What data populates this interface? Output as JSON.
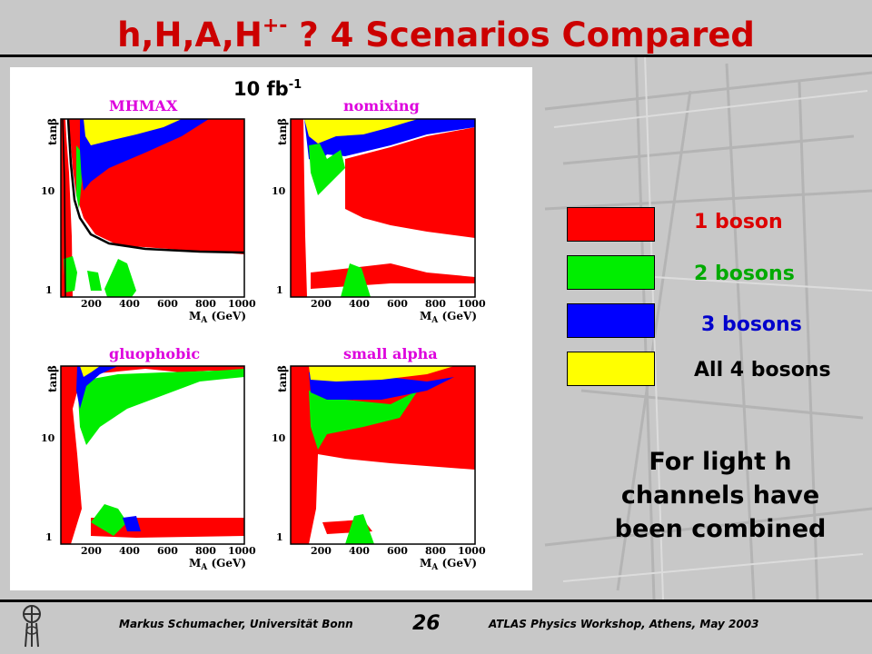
{
  "title": {
    "prefix": "h,H,A,H",
    "superscript": "+-",
    "suffix": " ? 4 Scenarios Compared"
  },
  "luminosity": {
    "value": "10 fb",
    "superscript": "-1"
  },
  "plots": [
    {
      "name": "MHMAX"
    },
    {
      "name": "nomixing"
    },
    {
      "name": "gluophobic"
    },
    {
      "name": "small alpha"
    }
  ],
  "axes": {
    "y_label": "tanβ",
    "y_ticks": [
      "10",
      "1"
    ],
    "x_label_main": "M",
    "x_label_sub": "A",
    "x_label_unit": " (GeV)",
    "x_ticks": [
      "200",
      "400",
      "600",
      "800",
      "1000"
    ]
  },
  "legend": [
    {
      "label": "1 boson",
      "color": "#ff0000",
      "text_color": "#dd0000"
    },
    {
      "label": "2 bosons",
      "color": "#00ee00",
      "text_color": "#00aa00"
    },
    {
      "label": "3 bosons",
      "color": "#0000ff",
      "text_color": "#0000cc"
    },
    {
      "label": "All 4 bosons",
      "color": "#ffff00",
      "text_color": "#000000"
    }
  ],
  "note": {
    "line1": "For light h",
    "line2": "channels have",
    "line3": "been combined"
  },
  "footer": {
    "left": "Markus Schumacher,  Universität Bonn",
    "page": "26",
    "right": "ATLAS Physics Workshop, Athens, May 2003"
  },
  "colors": {
    "title": "#cc0000",
    "plot_title": "#dd00dd",
    "background": "#c8c8c8"
  }
}
